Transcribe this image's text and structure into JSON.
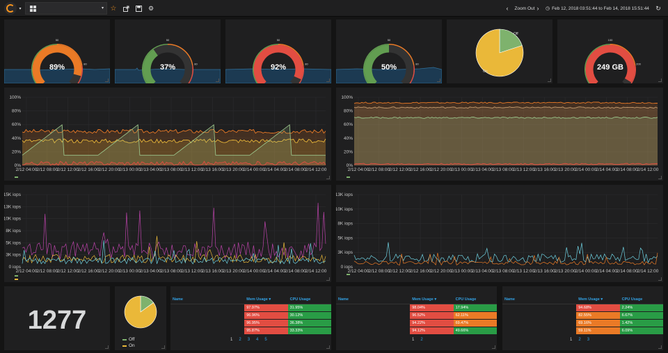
{
  "topbar": {
    "zoom_out": "Zoom Out",
    "time_range": "Feb 12, 2018 03:51:44 to Feb 14, 2018 15:51:44"
  },
  "gauges": [
    {
      "value": "89%",
      "fraction": 0.89,
      "color": "#ea7a26",
      "thresholds": [
        "50",
        "80"
      ]
    },
    {
      "value": "37%",
      "fraction": 0.37,
      "color": "#629e51",
      "thresholds": [
        "50",
        "80"
      ]
    },
    {
      "value": "92%",
      "fraction": 0.92,
      "color": "#e24d42",
      "thresholds": [
        "50",
        "80"
      ]
    },
    {
      "value": "50%",
      "fraction": 0.5,
      "color": "#629e51",
      "thresholds": [
        "50",
        "80"
      ]
    },
    {
      "value": "249 GB",
      "fraction": 0.95,
      "color": "#e24d42",
      "thresholds": [
        "100",
        "200"
      ]
    }
  ],
  "pie_top": {
    "labels": [
      "Off",
      "On"
    ],
    "values": [
      20,
      80
    ],
    "colors": [
      "#7eb26d",
      "#eab839"
    ]
  },
  "pie_bottom": {
    "labels": [
      "Off",
      "On"
    ],
    "values": [
      15,
      85
    ],
    "colors": [
      "#7eb26d",
      "#eab839"
    ]
  },
  "singlestat": {
    "value": "1277"
  },
  "chart_data": [
    {
      "type": "line",
      "name": "cpu-left",
      "yticks": [
        "100%",
        "80%",
        "60%",
        "40%",
        "20%",
        "0%"
      ],
      "xticks": [
        "2/12 04:00",
        "2/12 08:00",
        "2/12 12:00",
        "2/12 16:00",
        "2/12 20:00",
        "2/13 00:00",
        "2/13 04:00",
        "2/13 08:00",
        "2/13 12:00",
        "2/13 16:00",
        "2/13 20:00",
        "2/14 00:00",
        "2/14 04:00",
        "2/14 08:00",
        "2/14 12:00"
      ],
      "ylim": [
        0,
        100
      ],
      "series": [
        {
          "color": "#ea7a26",
          "level": 50
        },
        {
          "color": "#eab839",
          "level": 36
        },
        {
          "color": "#9ac48a",
          "level": 15
        },
        {
          "color": "#e24d42",
          "level": 3
        }
      ]
    },
    {
      "type": "line",
      "name": "cpu-right",
      "yticks": [
        "100%",
        "80%",
        "60%",
        "40%",
        "20%",
        "0%"
      ],
      "xticks": [
        "2/12 04:00",
        "2/12 08:00",
        "2/12 12:00",
        "2/12 16:00",
        "2/12 20:00",
        "2/13 00:00",
        "2/13 04:00",
        "2/13 08:00",
        "2/13 12:00",
        "2/13 16:00",
        "2/13 20:00",
        "2/14 00:00",
        "2/14 04:00",
        "2/14 08:00",
        "2/14 12:00"
      ],
      "ylim": [
        0,
        100
      ],
      "series": [
        {
          "color": "#ea7a26",
          "level": 92
        },
        {
          "color": "#c49a6c",
          "level": 85
        },
        {
          "color": "#9ac48a",
          "level": 70
        },
        {
          "color": "#e24d42",
          "level": 2
        }
      ]
    },
    {
      "type": "line",
      "name": "iops-left",
      "yticks": [
        "15K iops",
        "13K iops",
        "10K iops",
        "8K iops",
        "5K iops",
        "3K iops",
        "0 iops"
      ],
      "xticks": [
        "2/12 04:00",
        "2/12 08:00",
        "2/12 12:00",
        "2/12 16:00",
        "2/12 20:00",
        "2/13 00:00",
        "2/13 04:00",
        "2/13 08:00",
        "2/13 12:00",
        "2/13 16:00",
        "2/13 20:00",
        "2/14 00:00",
        "2/14 04:00",
        "2/14 08:00",
        "2/14 12:00"
      ],
      "ylim": [
        0,
        15000
      ],
      "series": [
        {
          "color": "#ba43a9",
          "level": 4000
        },
        {
          "color": "#eab839",
          "level": 2000
        },
        {
          "color": "#6ed0e0",
          "level": 1500
        }
      ]
    },
    {
      "type": "line",
      "name": "iops-right",
      "yticks": [
        "13K iops",
        "10K iops",
        "8K iops",
        "5K iops",
        "3K iops",
        "0 iops"
      ],
      "xticks": [
        "2/12 04:00",
        "2/12 08:00",
        "2/12 12:00",
        "2/12 16:00",
        "2/12 20:00",
        "2/13 00:00",
        "2/13 04:00",
        "2/13 08:00",
        "2/13 12:00",
        "2/13 16:00",
        "2/13 20:00",
        "2/14 00:00",
        "2/14 04:00",
        "2/14 08:00",
        "2/14 12:00"
      ],
      "ylim": [
        0,
        13000
      ],
      "series": [
        {
          "color": "#6ed0e0",
          "level": 1800
        },
        {
          "color": "#ea7a26",
          "level": 800
        }
      ]
    }
  ],
  "tables": [
    {
      "headers": [
        "Name",
        "Mem Usage ▾",
        "CPU Usage"
      ],
      "rows": [
        {
          "mem": "97.97%",
          "cpu": "31.95%",
          "mem_color": "#e24d42",
          "cpu_color": "#299c46"
        },
        {
          "mem": "96.96%",
          "cpu": "30.12%",
          "mem_color": "#e24d42",
          "cpu_color": "#299c46"
        },
        {
          "mem": "96.95%",
          "cpu": "36.38%",
          "mem_color": "#e24d42",
          "cpu_color": "#299c46"
        },
        {
          "mem": "95.87%",
          "cpu": "33.33%",
          "mem_color": "#e24d42",
          "cpu_color": "#299c46"
        }
      ],
      "pages": [
        "1",
        "2",
        "3",
        "4",
        "5"
      ]
    },
    {
      "headers": [
        "Name",
        "Mem Usage ▾",
        "CPU Usage"
      ],
      "rows": [
        {
          "mem": "98.04%",
          "cpu": "17.94%",
          "mem_color": "#e24d42",
          "cpu_color": "#299c46"
        },
        {
          "mem": "96.52%",
          "cpu": "62.11%",
          "mem_color": "#e24d42",
          "cpu_color": "#ea7a26"
        },
        {
          "mem": "94.22%",
          "cpu": "69.47%",
          "mem_color": "#e24d42",
          "cpu_color": "#ea7a26"
        },
        {
          "mem": "94.12%",
          "cpu": "49.66%",
          "mem_color": "#e24d42",
          "cpu_color": "#299c46"
        }
      ],
      "pages": [
        "1",
        "2"
      ]
    },
    {
      "headers": [
        "Name",
        "Mem Usage ▾",
        "CPU Usage"
      ],
      "rows": [
        {
          "mem": "94.68%",
          "cpu": "2.24%",
          "mem_color": "#e24d42",
          "cpu_color": "#299c46"
        },
        {
          "mem": "82.55%",
          "cpu": "6.67%",
          "mem_color": "#ea7a26",
          "cpu_color": "#299c46"
        },
        {
          "mem": "69.16%",
          "cpu": "1.42%",
          "mem_color": "#ea7a26",
          "cpu_color": "#299c46"
        },
        {
          "mem": "59.11%",
          "cpu": "6.09%",
          "mem_color": "#ea7a26",
          "cpu_color": "#299c46"
        }
      ],
      "pages": [
        "1",
        "2",
        "3"
      ]
    }
  ]
}
